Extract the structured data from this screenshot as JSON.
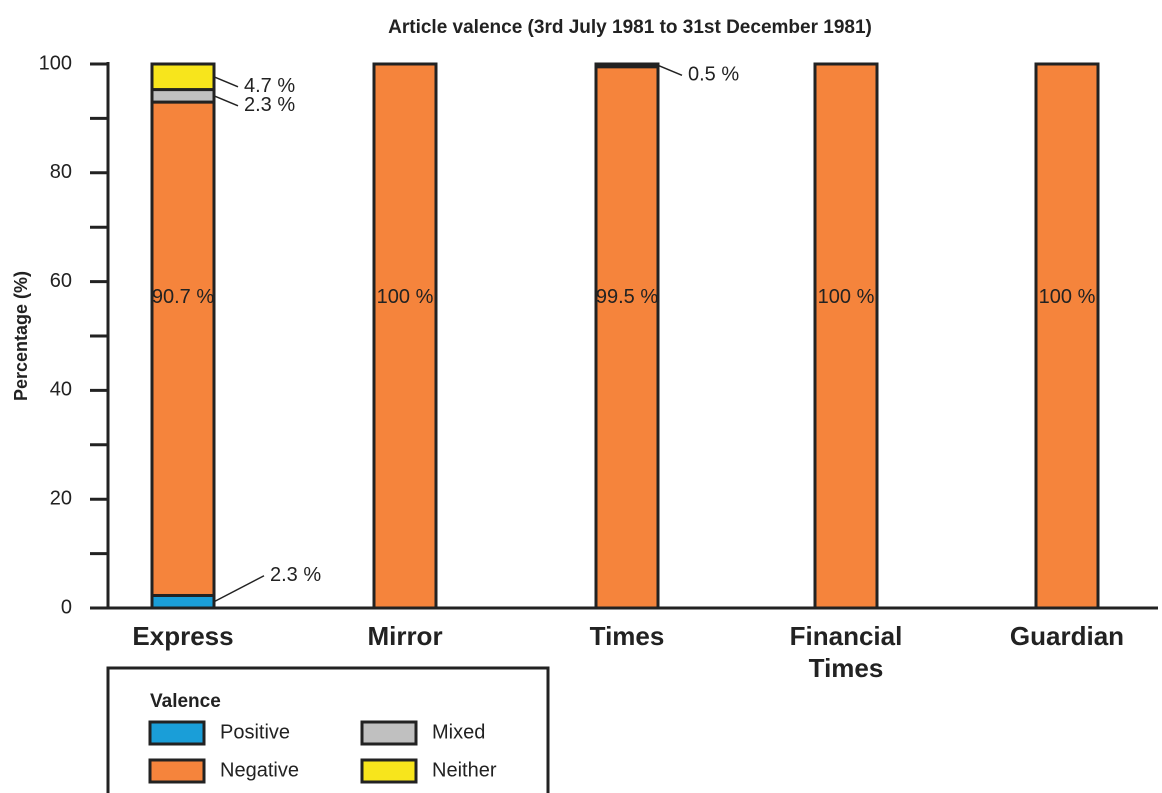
{
  "chart_data": {
    "type": "stacked_bar",
    "title": "Article valence (3rd July 1981 to 31st December 1981)",
    "y_label": "Percentage (%)",
    "categories": [
      "Express",
      "Mirror",
      "Times",
      "Financial Times",
      "Guardian"
    ],
    "series": [
      {
        "name": "Positive",
        "color": "#1a9ed8",
        "values": [
          2.3,
          0,
          0,
          0,
          0
        ],
        "value_labels": [
          "2.3 %",
          null,
          null,
          null,
          null
        ]
      },
      {
        "name": "Negative",
        "color": "#f5843c",
        "values": [
          90.7,
          100,
          99.5,
          100,
          100
        ],
        "value_labels": [
          "90.7 %",
          "100 %",
          "99.5 %",
          "100 %",
          "100 %"
        ]
      },
      {
        "name": "Mixed",
        "color": "#c0c0c0",
        "values": [
          2.3,
          0,
          0.5,
          0,
          0
        ],
        "value_labels": [
          "2.3 %",
          null,
          "0.5 %",
          null,
          null
        ]
      },
      {
        "name": "Neither",
        "color": "#f7e51c",
        "values": [
          4.7,
          0,
          0,
          0,
          0
        ],
        "value_labels": [
          "4.7 %",
          null,
          null,
          null,
          null
        ]
      }
    ],
    "ylim": [
      0,
      100
    ],
    "yticks": [
      0,
      20,
      40,
      60,
      80,
      100
    ],
    "yminor_ticks": [
      10,
      30,
      50,
      70,
      90
    ],
    "legend_title": "Valence",
    "legend": "bottom-left"
  }
}
